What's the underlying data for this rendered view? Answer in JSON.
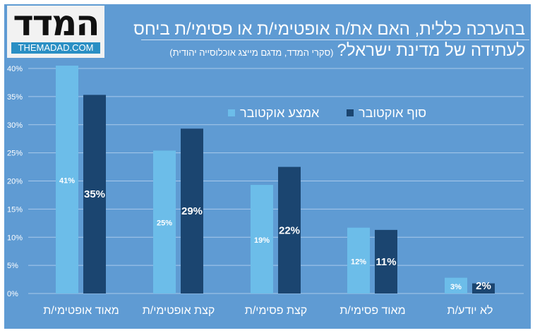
{
  "logo": {
    "main": "המדד",
    "sub": "THEMADAD.COM"
  },
  "title_line1": "בהערכה כללית, האם את/ה אופטימי/ת או פסימי/ת ביחס",
  "title_line2": "לעתידה של מדינת ישראל?",
  "subtitle": "(סקרי המדד, מדגם מייצג אוכלוסייה יהודית)",
  "chart_data": {
    "type": "bar",
    "categories": [
      "מאוד אופטימי/ת",
      "קצת אופטימי/ת",
      "קצת פסימי/ת",
      "מאוד פסימי/ת",
      "לא יודע/ת"
    ],
    "series": [
      {
        "name": "אמצע אוקטובר",
        "color": "#6cbde9",
        "values": [
          40.5,
          25.4,
          19.3,
          11.7,
          2.8
        ],
        "labels": [
          "41%",
          "25%",
          "19%",
          "12%",
          "3%"
        ]
      },
      {
        "name": "סוף אוקטובר",
        "color": "#1b4570",
        "values": [
          35.3,
          29.3,
          22.5,
          11.3,
          1.8
        ],
        "labels": [
          "35%",
          "29%",
          "22%",
          "11%",
          "2%"
        ]
      }
    ],
    "yticks": [
      "0%",
      "5%",
      "10%",
      "15%",
      "20%",
      "25%",
      "30%",
      "35%",
      "40%"
    ],
    "ylim": [
      0,
      40
    ],
    "grid": true,
    "legend": "top-right"
  }
}
